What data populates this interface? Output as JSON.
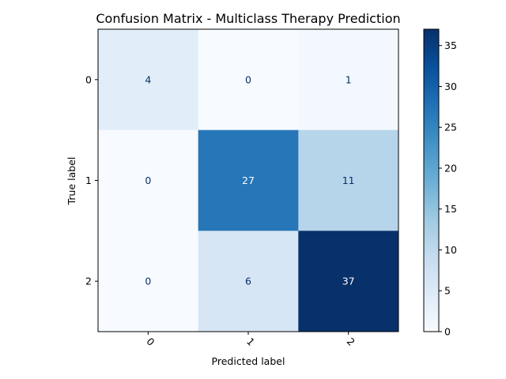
{
  "chart_data": {
    "type": "heatmap",
    "title": "Confusion Matrix - Multiclass Therapy Prediction",
    "xlabel": "Predicted label",
    "ylabel": "True label",
    "x_categories": [
      "0",
      "1",
      "2"
    ],
    "y_categories": [
      "0",
      "1",
      "2"
    ],
    "matrix": [
      [
        4,
        0,
        1
      ],
      [
        0,
        27,
        11
      ],
      [
        0,
        6,
        37
      ]
    ],
    "colormap": "Blues",
    "color_range": [
      0,
      37
    ],
    "colorbar_ticks": [
      0,
      5,
      10,
      15,
      20,
      25,
      30,
      35
    ],
    "x_tick_rotation_deg": 45,
    "grid": false
  }
}
